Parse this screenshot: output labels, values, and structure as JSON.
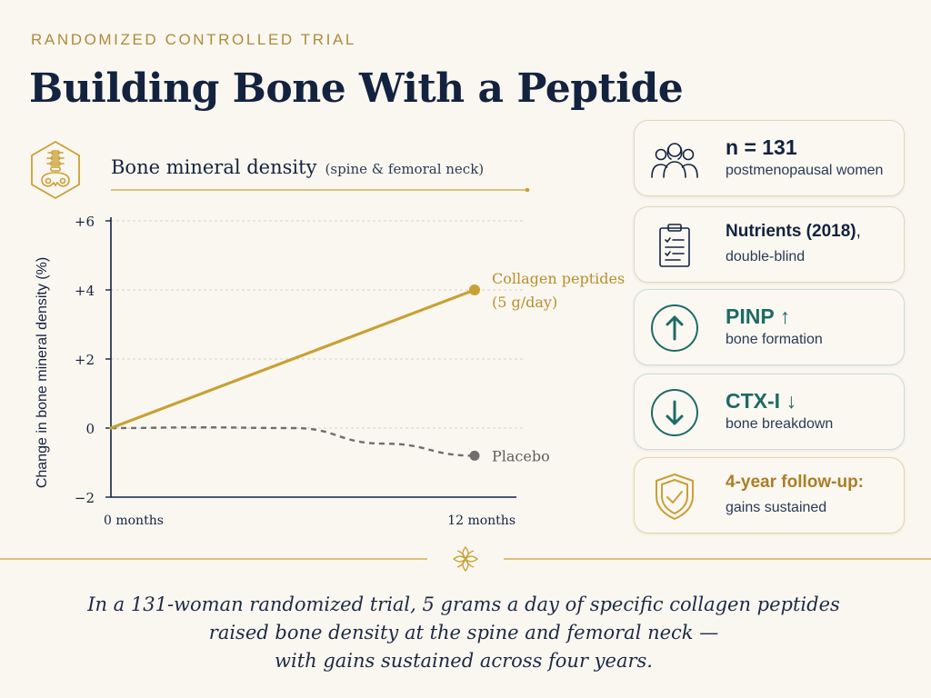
{
  "header": {
    "kicker": "RANDOMIZED CONTROLLED TRIAL",
    "title": "Building Bone With a Peptide"
  },
  "chart_header": {
    "title": "Bone mineral density",
    "subtitle": "(spine & femoral neck)"
  },
  "chart_data": {
    "type": "line",
    "title": "Bone mineral density (spine & femoral neck)",
    "xlabel": "",
    "ylabel": "Change in bone mineral density (%)",
    "x_ticks": [
      "0 months",
      "12 months"
    ],
    "y_ticks": [
      "+6",
      "+4",
      "+2",
      "0",
      "−2"
    ],
    "y_tick_values": [
      6,
      4,
      2,
      0,
      -2
    ],
    "ylim": [
      -2,
      6
    ],
    "xlim": [
      0,
      12
    ],
    "grid": "horizontal dashed",
    "series": [
      {
        "name": "Collagen peptides (5 g/day)",
        "label_lines": [
          "Collagen peptides",
          "(5 g/day)"
        ],
        "color": "#c9a035",
        "style": "solid",
        "x": [
          0,
          12
        ],
        "y": [
          0,
          4.0
        ]
      },
      {
        "name": "Placebo",
        "label_lines": [
          "Placebo"
        ],
        "color": "#6e6e6e",
        "style": "dashed",
        "x": [
          0,
          3,
          6,
          9,
          12
        ],
        "y": [
          0,
          0.02,
          0.0,
          -0.45,
          -0.8
        ]
      }
    ]
  },
  "cards": [
    {
      "icon": "people-icon",
      "bold": "n = 131",
      "rest": "",
      "sub": "postmenopausal women",
      "color": "#13233f"
    },
    {
      "icon": "clipboard-icon",
      "bold": "Nutrients (2018)",
      "rest": ",",
      "sub": "double-blind",
      "color": "#13233f"
    },
    {
      "icon": "arrow-up-icon",
      "bold": "PINP ↑",
      "rest": "",
      "sub": "bone formation",
      "color": "#1c6b64"
    },
    {
      "icon": "arrow-down-icon",
      "bold": "CTX-I ↓",
      "rest": "",
      "sub": "bone breakdown",
      "color": "#1c6b64"
    },
    {
      "icon": "shield-check-icon",
      "bold": "4-year follow-up:",
      "rest": "",
      "sub": "gains sustained",
      "color": "#a97f26"
    }
  ],
  "caption": {
    "lines": [
      "In a 131-woman randomized trial, 5 grams a day of specific collagen peptides",
      "raised bone density at the spine and femoral neck —",
      "with gains sustained across four years."
    ]
  }
}
